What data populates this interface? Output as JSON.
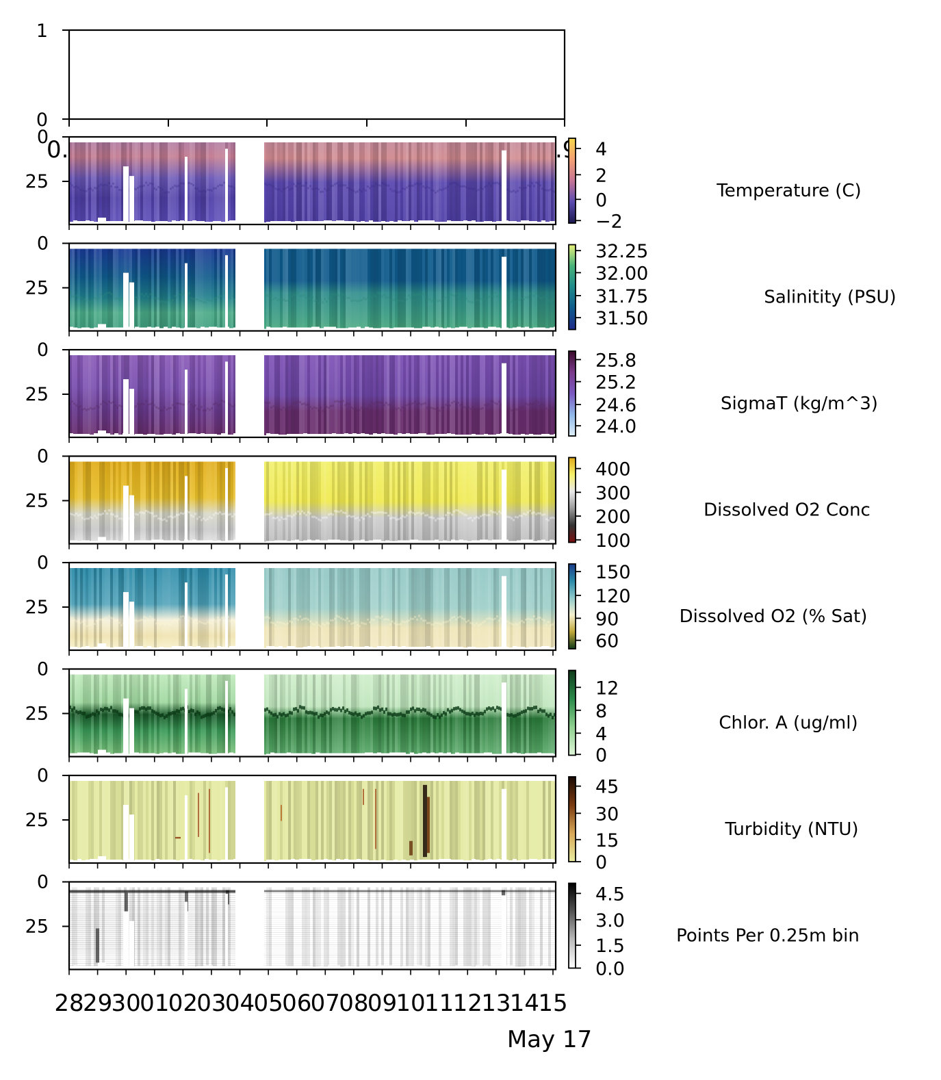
{
  "chart_data": {
    "type": "heatmap",
    "xaxis": {
      "tick_labels": [
        "28",
        "29",
        "30",
        "01",
        "02",
        "03",
        "04",
        "05",
        "06",
        "07",
        "08",
        "09",
        "10",
        "11",
        "12",
        "13",
        "14",
        "15"
      ],
      "month_label": "May 17"
    },
    "top_axis": {
      "yticks": [
        "0",
        "1"
      ],
      "overlap_text": [
        "0.",
        ".9"
      ]
    },
    "yaxis": {
      "ticks": [
        "0",
        "25"
      ]
    },
    "data_gap": {
      "start_day": 6.9,
      "end_day": 7.0
    },
    "panels": [
      {
        "label": "Temperature (C)",
        "cbar_ticks": [
          "4",
          "2",
          "0",
          "−2"
        ],
        "colors": [
          "#1b1a4e",
          "#5b4bb0",
          "#c57594",
          "#f4a074",
          "#f5d64a"
        ],
        "range": [
          -2,
          5
        ]
      },
      {
        "label": "Salinitity (PSU)",
        "cbar_ticks": [
          "32.25",
          "32.00",
          "31.75",
          "31.50"
        ],
        "colors": [
          "#1f2a8a",
          "#0f5a8c",
          "#1f8a8a",
          "#47b27a",
          "#e8f07a"
        ],
        "range": [
          31.35,
          32.3
        ]
      },
      {
        "label": "SigmaT (kg/m^3)",
        "cbar_ticks": [
          "25.8",
          "25.2",
          "24.6",
          "24.0"
        ],
        "colors": [
          "#dff0f8",
          "#8fb6e8",
          "#7a58c0",
          "#7a3a8a",
          "#3a0a2a"
        ],
        "range": [
          23.7,
          26.0
        ]
      },
      {
        "label": "Dissolved O2 Conc",
        "cbar_ticks": [
          "400",
          "300",
          "200",
          "100"
        ],
        "colors": [
          "#7a0f0f",
          "#333333",
          "#9a9a9a",
          "#e8e8e8",
          "#f5f069",
          "#e0a91a"
        ],
        "range": [
          80,
          440
        ]
      },
      {
        "label": "Dissolved O2 (% Sat)",
        "cbar_ticks": [
          "150",
          "120",
          "90",
          "60"
        ],
        "colors": [
          "#0f3a1a",
          "#bfa83a",
          "#f5f0d0",
          "#8fc9c9",
          "#2a8aa8",
          "#1a3a8a"
        ],
        "range": [
          45,
          160
        ]
      },
      {
        "label": "Chlor. A (ug/ml)",
        "cbar_ticks": [
          "12",
          "8",
          "4",
          "0"
        ],
        "colors": [
          "#dff5d8",
          "#8fd08f",
          "#2a8a4a",
          "#0f3a1a"
        ],
        "range": [
          0,
          15
        ]
      },
      {
        "label": "Turbidity (NTU)",
        "cbar_ticks": [
          "45",
          "30",
          "15",
          "0"
        ],
        "colors": [
          "#e8eca0",
          "#d8a858",
          "#7a3a10",
          "#1a0a05"
        ],
        "range": [
          0,
          50
        ]
      },
      {
        "label": "Points Per 0.25m bin",
        "cbar_ticks": [
          "4.5",
          "3.0",
          "1.5",
          "0.0"
        ],
        "colors": [
          "#ffffff",
          "#bbbbbb",
          "#555555",
          "#000000"
        ],
        "range": [
          0,
          5
        ]
      }
    ]
  }
}
